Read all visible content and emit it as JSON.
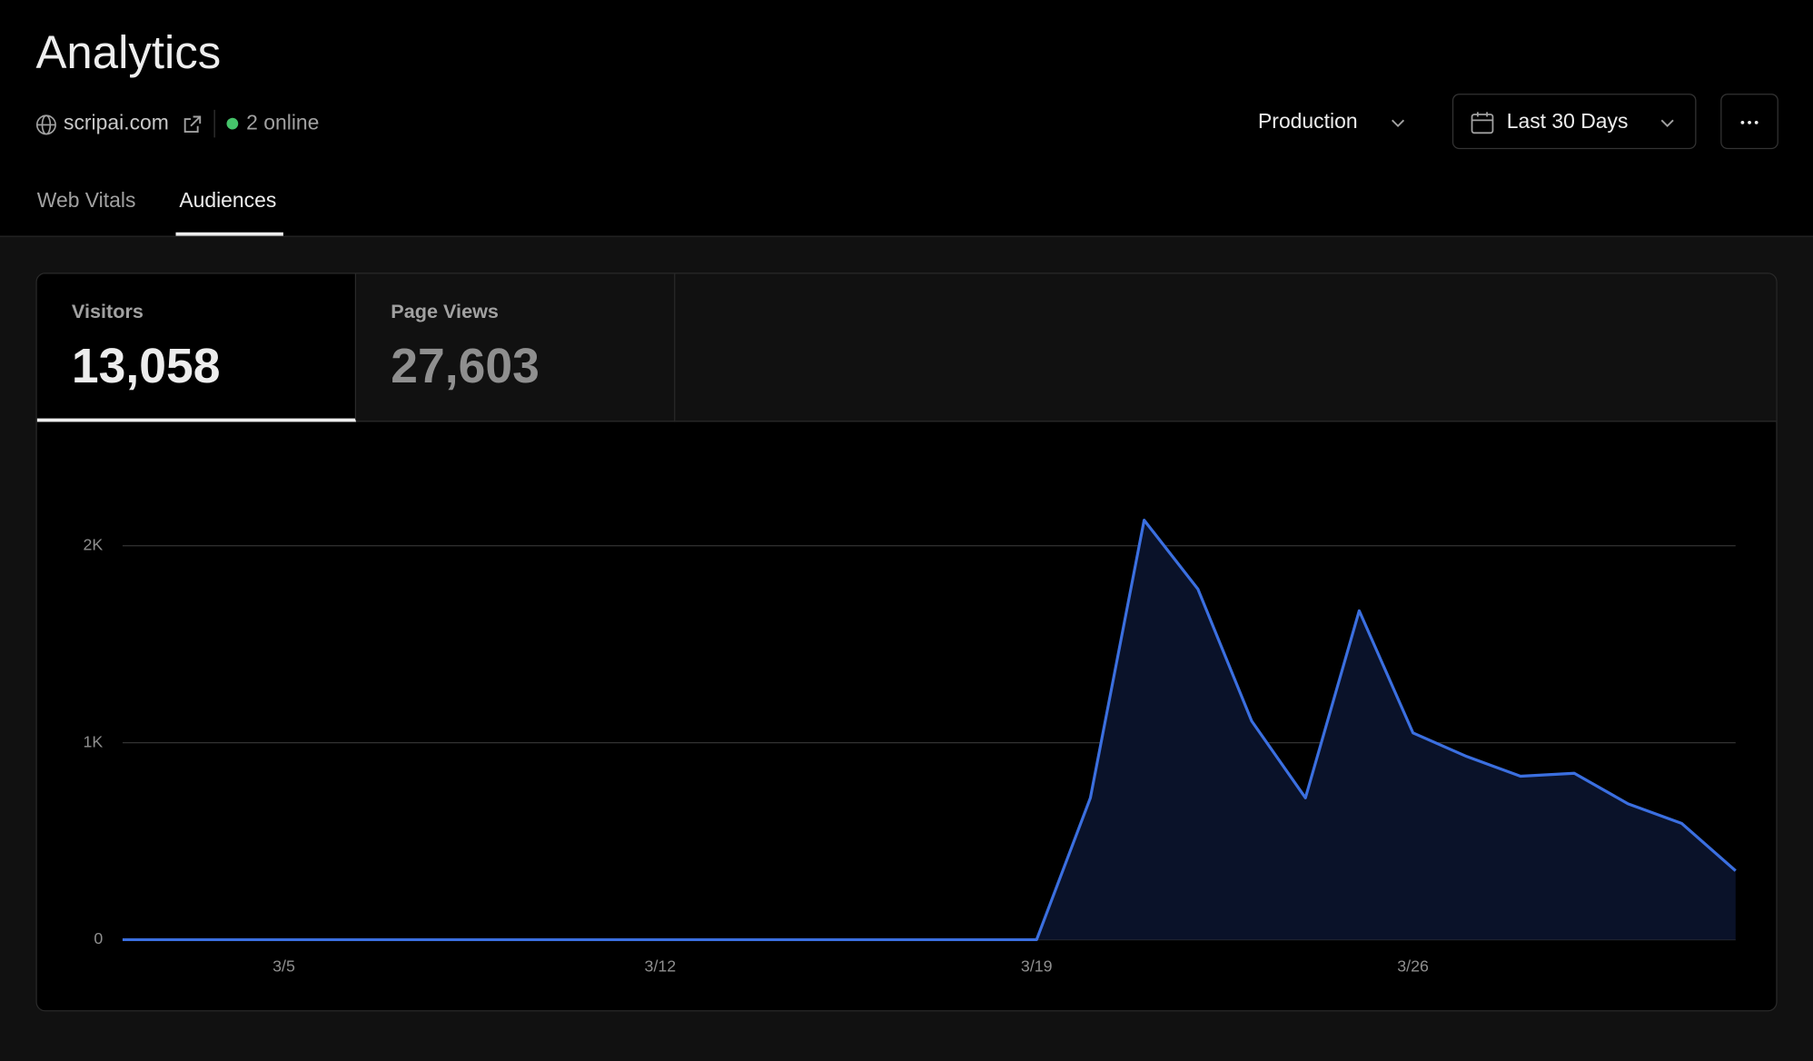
{
  "header": {
    "title": "Analytics",
    "domain": "scripai.com",
    "online": "2 online",
    "environment": "Production",
    "range": "Last 30 Days"
  },
  "tabs": [
    "Web Vitals",
    "Audiences"
  ],
  "stats": [
    {
      "label": "Visitors",
      "value": "13,058"
    },
    {
      "label": "Page Views",
      "value": "27,603"
    }
  ],
  "chart_data": {
    "type": "area",
    "categories": [
      null,
      null,
      null,
      "3/5",
      null,
      null,
      null,
      null,
      null,
      null,
      "3/12",
      null,
      null,
      null,
      null,
      null,
      null,
      "3/19",
      null,
      null,
      null,
      null,
      null,
      null,
      "3/26",
      null,
      null,
      null,
      null,
      null,
      null
    ],
    "values": [
      0,
      0,
      0,
      0,
      0,
      0,
      0,
      0,
      0,
      0,
      0,
      0,
      0,
      0,
      0,
      0,
      0,
      0,
      720,
      2130,
      1780,
      1110,
      720,
      1670,
      1050,
      930,
      830,
      845,
      690,
      590,
      350
    ],
    "color": "#3b6fe0",
    "ylim": [
      0,
      2400
    ],
    "yticks": [
      0,
      {
        "value": 1000,
        "label": "1K"
      },
      {
        "value": 2000,
        "label": "2K"
      }
    ],
    "grid": true
  }
}
